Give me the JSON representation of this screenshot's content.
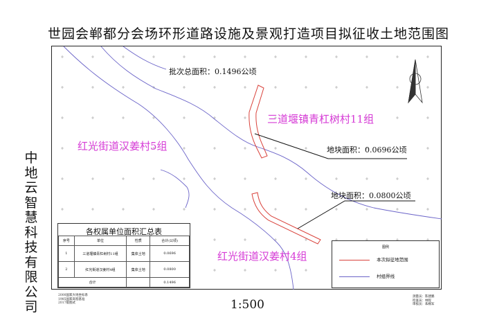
{
  "title": "世园会郸都分会场环形道路设施及景观打造项目拟征收土地范围图",
  "company": [
    "中",
    "地",
    "云",
    "智",
    "慧",
    "科",
    "技",
    "有",
    "限",
    "公",
    "司"
  ],
  "labels": {
    "total_area": "批次总面积：0.1496公顷",
    "parcel1_area": "地块面积：0.0696公顷",
    "parcel2_area": "地块面积：0.0800公顷"
  },
  "villages": {
    "v1": "三道堰镇青杠树村11组",
    "v2": "红光街道汉姜村5组",
    "v3": "红光街道汉姜村4组"
  },
  "summary": {
    "title": "各权属单位面积汇总表",
    "headers": [
      "序号",
      "单位",
      "性质",
      "合计(公顷)"
    ],
    "rows": [
      {
        "no": "1",
        "unit": "三道堰镇青杠树村11组",
        "type": "集体土地",
        "area": "0.0696"
      },
      {
        "no": "2",
        "unit": "红光街道汉姜村4组",
        "type": "集体土地",
        "area": "0.0800"
      }
    ],
    "total_label": "合计",
    "total_area": "0.1496"
  },
  "legend": {
    "title": "图例",
    "items": [
      {
        "label": "本次拟征地范围",
        "color": "#d9413a"
      },
      {
        "label": "村组界线",
        "color": "#6a63c8"
      }
    ]
  },
  "footer_left": [
    "2000国家大地坐标系",
    "1985国家高程基准",
    "2017版图式"
  ],
  "footer_right": [
    "测量员：陈建鹏",
    "检查员：林程",
    "审核员：朱桐军"
  ],
  "scale": "1:500",
  "colors": {
    "parcel": "#d9413a",
    "boundary": "#6a63c8",
    "village": "#d63bd6"
  }
}
